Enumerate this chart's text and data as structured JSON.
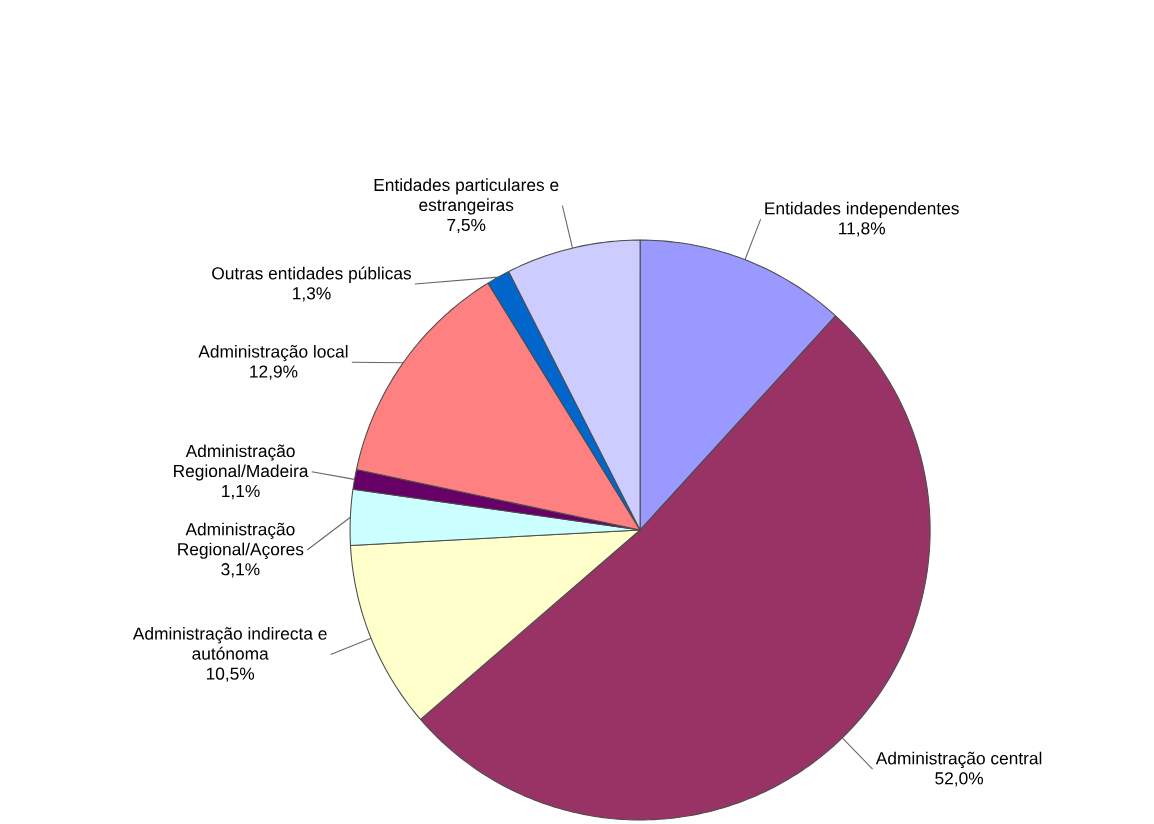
{
  "chart_data": {
    "type": "pie",
    "categories": [
      "Entidades independentes",
      "Administração central",
      "Administração indirecta e autónoma",
      "Administração Regional/Açores",
      "Administração Regional/Madeira",
      "Administração local",
      "Outras entidades públicas",
      "Entidades particulares e estrangeiras"
    ],
    "values": [
      11.8,
      52.0,
      10.5,
      3.1,
      1.1,
      12.9,
      1.3,
      7.5
    ],
    "value_labels": [
      "11,8%",
      "52,0%",
      "10,5%",
      "3,1%",
      "1,1%",
      "12,9%",
      "1,3%",
      "7,5%"
    ],
    "colors": [
      "#9999ff",
      "#993366",
      "#ffffcc",
      "#ccffff",
      "#660066",
      "#ff8080",
      "#0066cc",
      "#ccccff"
    ]
  }
}
